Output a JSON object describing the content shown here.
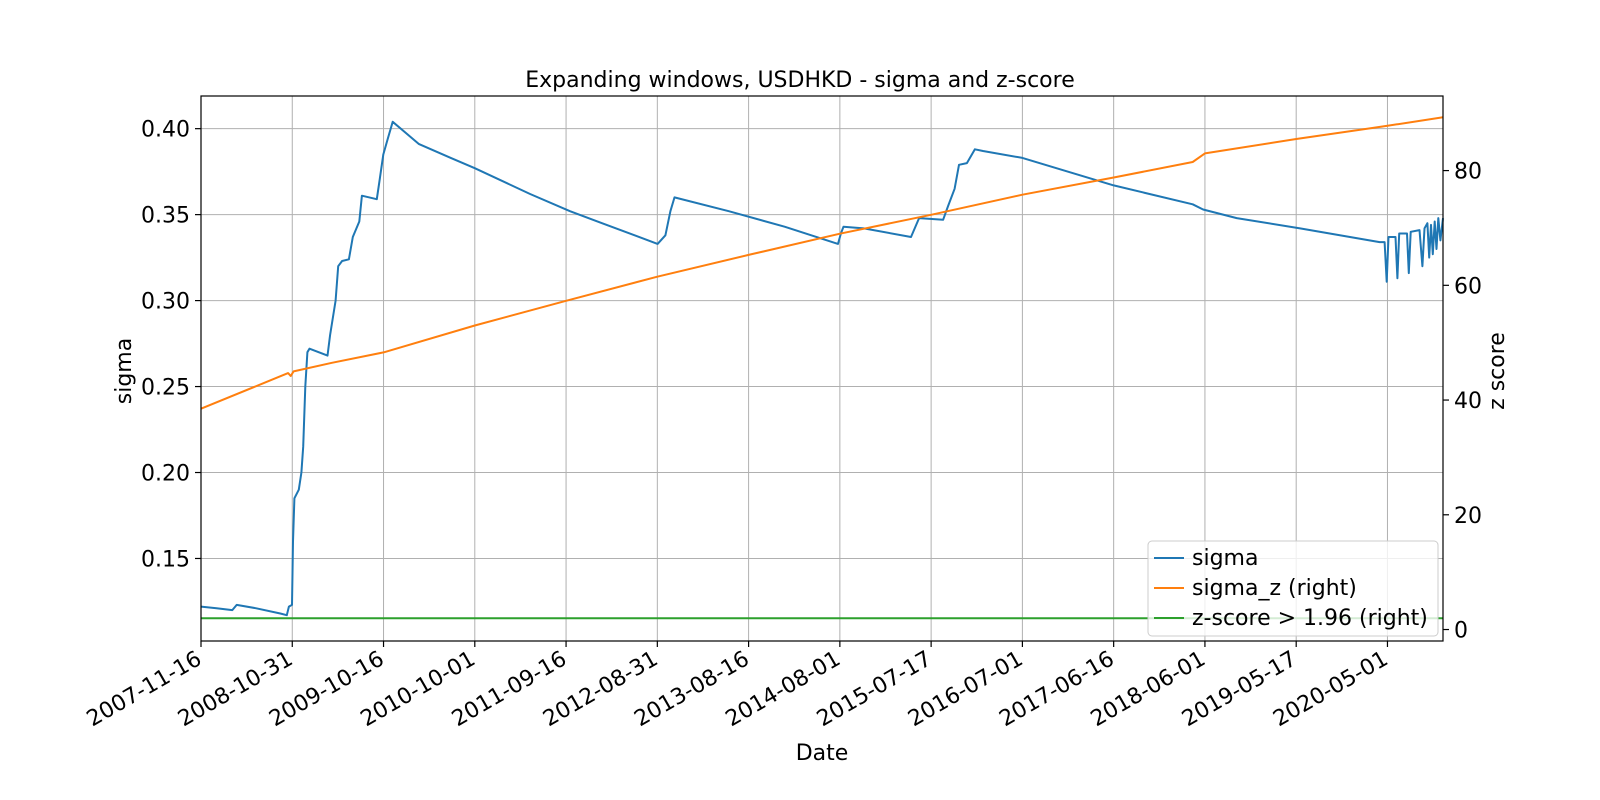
{
  "chart_data": {
    "type": "line",
    "title": "Expanding windows, USDHKD - sigma and z-score",
    "xlabel": "Date",
    "ylabel": "sigma",
    "ylabel_right": "z score",
    "x_ticks": [
      "2007-11-16",
      "2008-10-31",
      "2009-10-16",
      "2010-10-01",
      "2011-09-16",
      "2012-08-31",
      "2013-08-16",
      "2014-08-01",
      "2015-07-17",
      "2016-07-01",
      "2017-06-16",
      "2018-06-01",
      "2019-05-17",
      "2020-05-01"
    ],
    "xlim": [
      "2007-11-16",
      "2020-11-30"
    ],
    "ylim": [
      0.102,
      0.419
    ],
    "ylim_right": [
      -2,
      93
    ],
    "y_ticks": [
      0.15,
      0.2,
      0.25,
      0.3,
      0.35,
      0.4
    ],
    "y_ticks_right": [
      0,
      20,
      40,
      60,
      80
    ],
    "grid": true,
    "legend_position": "lower right",
    "colors": {
      "sigma": "#1f77b4",
      "sigma_z": "#ff7f0e",
      "threshold": "#2ca02c"
    },
    "series": [
      {
        "name": "sigma",
        "axis": "left",
        "points": [
          [
            "2007-11-16",
            0.122
          ],
          [
            "2008-01-15",
            0.121
          ],
          [
            "2008-03-15",
            0.12
          ],
          [
            "2008-04-01",
            0.123
          ],
          [
            "2008-06-15",
            0.121
          ],
          [
            "2008-09-15",
            0.118
          ],
          [
            "2008-10-10",
            0.117
          ],
          [
            "2008-10-18",
            0.122
          ],
          [
            "2008-10-30",
            0.123
          ],
          [
            "2008-11-03",
            0.16
          ],
          [
            "2008-11-08",
            0.185
          ],
          [
            "2008-11-25",
            0.19
          ],
          [
            "2008-12-05",
            0.2
          ],
          [
            "2008-12-12",
            0.215
          ],
          [
            "2008-12-20",
            0.25
          ],
          [
            "2008-12-28",
            0.27
          ],
          [
            "2009-01-05",
            0.272
          ],
          [
            "2009-03-15",
            0.268
          ],
          [
            "2009-03-25",
            0.28
          ],
          [
            "2009-04-15",
            0.3
          ],
          [
            "2009-04-25",
            0.32
          ],
          [
            "2009-05-10",
            0.323
          ],
          [
            "2009-06-05",
            0.324
          ],
          [
            "2009-06-20",
            0.337
          ],
          [
            "2009-07-15",
            0.346
          ],
          [
            "2009-07-25",
            0.361
          ],
          [
            "2009-09-20",
            0.359
          ],
          [
            "2009-10-01",
            0.37
          ],
          [
            "2009-10-15",
            0.385
          ],
          [
            "2009-11-01",
            0.394
          ],
          [
            "2009-11-20",
            0.404
          ],
          [
            "2010-03-01",
            0.391
          ],
          [
            "2010-07-01",
            0.383
          ],
          [
            "2010-10-01",
            0.377
          ],
          [
            "2011-05-01",
            0.362
          ],
          [
            "2011-10-01",
            0.352
          ],
          [
            "2012-02-01",
            0.345
          ],
          [
            "2012-09-01",
            0.333
          ],
          [
            "2012-10-01",
            0.338
          ],
          [
            "2012-10-20",
            0.352
          ],
          [
            "2012-11-05",
            0.36
          ],
          [
            "2013-06-01",
            0.352
          ],
          [
            "2014-01-01",
            0.343
          ],
          [
            "2014-07-25",
            0.333
          ],
          [
            "2014-08-05",
            0.339
          ],
          [
            "2014-08-15",
            0.343
          ],
          [
            "2014-11-01",
            0.342
          ],
          [
            "2015-05-01",
            0.337
          ],
          [
            "2015-06-01",
            0.348
          ],
          [
            "2015-09-01",
            0.347
          ],
          [
            "2015-09-20",
            0.355
          ],
          [
            "2015-10-15",
            0.365
          ],
          [
            "2015-11-01",
            0.379
          ],
          [
            "2015-12-01",
            0.38
          ],
          [
            "2016-01-01",
            0.388
          ],
          [
            "2016-02-01",
            0.387
          ],
          [
            "2016-07-01",
            0.383
          ],
          [
            "2017-06-16",
            0.367
          ],
          [
            "2018-04-15",
            0.356
          ],
          [
            "2018-05-25",
            0.353
          ],
          [
            "2018-10-01",
            0.348
          ],
          [
            "2019-06-01",
            0.342
          ],
          [
            "2020-04-01",
            0.334
          ],
          [
            "2020-04-20",
            0.334
          ],
          [
            "2020-04-28",
            0.311
          ],
          [
            "2020-05-05",
            0.337
          ],
          [
            "2020-06-01",
            0.337
          ],
          [
            "2020-06-08",
            0.313
          ],
          [
            "2020-06-15",
            0.339
          ],
          [
            "2020-07-15",
            0.339
          ],
          [
            "2020-07-22",
            0.316
          ],
          [
            "2020-07-29",
            0.34
          ],
          [
            "2020-09-01",
            0.341
          ],
          [
            "2020-09-12",
            0.32
          ],
          [
            "2020-09-20",
            0.342
          ],
          [
            "2020-10-01",
            0.345
          ],
          [
            "2020-10-08",
            0.325
          ],
          [
            "2020-10-15",
            0.344
          ],
          [
            "2020-10-22",
            0.327
          ],
          [
            "2020-10-29",
            0.346
          ],
          [
            "2020-11-05",
            0.33
          ],
          [
            "2020-11-12",
            0.348
          ],
          [
            "2020-11-20",
            0.335
          ],
          [
            "2020-11-30",
            0.348
          ]
        ]
      },
      {
        "name": "sigma_z (right)",
        "axis": "right",
        "points": [
          [
            "2007-11-16",
            38.5
          ],
          [
            "2008-10-15",
            44.7
          ],
          [
            "2008-10-25",
            44.2
          ],
          [
            "2008-11-05",
            45.0
          ],
          [
            "2009-04-01",
            46.5
          ],
          [
            "2009-10-16",
            48.3
          ],
          [
            "2010-10-01",
            53.0
          ],
          [
            "2011-09-16",
            57.3
          ],
          [
            "2012-08-31",
            61.5
          ],
          [
            "2013-08-16",
            65.3
          ],
          [
            "2014-08-01",
            69.0
          ],
          [
            "2015-07-17",
            72.3
          ],
          [
            "2016-07-01",
            75.8
          ],
          [
            "2017-06-16",
            78.8
          ],
          [
            "2018-04-15",
            81.5
          ],
          [
            "2018-06-01",
            83.0
          ],
          [
            "2019-05-17",
            85.5
          ],
          [
            "2020-05-01",
            87.8
          ],
          [
            "2020-11-30",
            89.3
          ]
        ]
      },
      {
        "name": "z-score > 1.96 (right)",
        "axis": "right",
        "points": [
          [
            "2007-11-16",
            1.96
          ],
          [
            "2020-11-30",
            1.96
          ]
        ]
      }
    ]
  }
}
